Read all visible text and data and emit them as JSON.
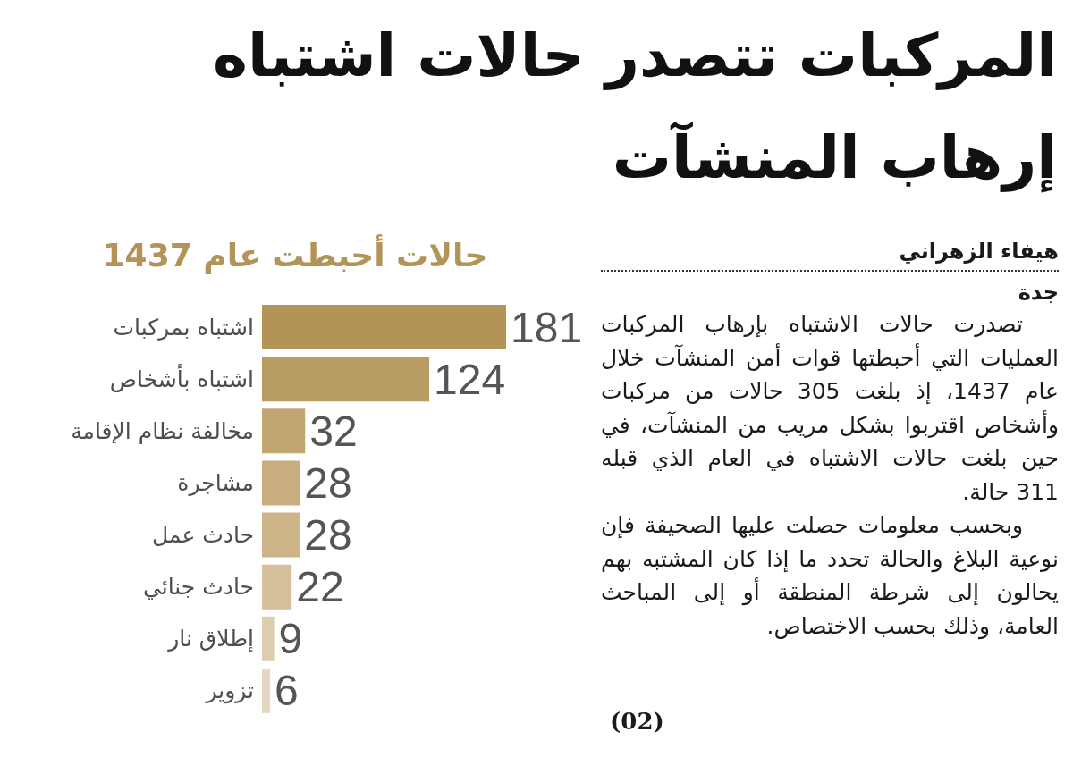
{
  "chart_data": {
    "type": "bar",
    "orientation": "horizontal",
    "title": "المركبات تتصدر حالات اشتباه إرهاب المنشآت",
    "subtitle": "حالات أحبطت عام 1437",
    "categories": [
      "اشتباه بمركبات",
      "اشتباه بأشخاص",
      "مخالفة نظام الإقامة",
      "مشاجرة",
      "حادث عمل",
      "حادث جنائي",
      "إطلاق نار",
      "تزوير"
    ],
    "values": [
      181,
      124,
      32,
      28,
      28,
      22,
      9,
      6
    ],
    "colors": [
      "#b39458",
      "#b89c63",
      "#c2a672",
      "#c8ae7e",
      "#cdb589",
      "#d5c09b",
      "#ddcdb0",
      "#e4d8c3"
    ],
    "data_labels": true,
    "tick_labels": "y",
    "annotations": [
      "هيفاء الزهراني",
      "جدة",
      "تصدرت حالات الاشتباه بإرهاب المركبات العمليات التي أحبطتها قوات أمن المنشآت خلال عام 1437، إذ بلغت 305 حالات من مركبات وأشخاص اقتربوا بشكل مريب من المنشآت، في حين بلغت حالات الاشتباه في العام الذي قبله 311 حالة.",
      "وبحسب معلومات حصلت عليها الصحيفة فإن نوعية البلاغ والحالة تحدد ما إذا كان المشتبه بهم يحالون إلى شرطة المنطقة أو إلى المباحث العامة، وذلك بحسب الاختصاص.",
      "(02)"
    ]
  }
}
